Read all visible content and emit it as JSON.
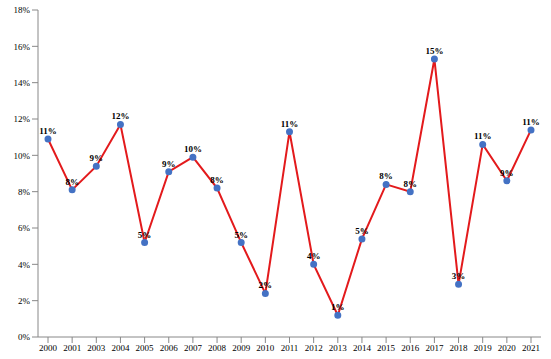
{
  "chart_data": {
    "type": "line",
    "categories": [
      "2000",
      "2001",
      "2003",
      "2004",
      "2005",
      "2006",
      "2007",
      "2008",
      "2009",
      "2010",
      "2011",
      "2012",
      "2013",
      "2014",
      "2015",
      "2016",
      "2017",
      "2018",
      "2019",
      "2020",
      "2021"
    ],
    "values": [
      10.9,
      8.1,
      9.4,
      11.7,
      5.2,
      9.1,
      9.9,
      8.2,
      5.2,
      2.4,
      11.3,
      4.0,
      1.2,
      5.4,
      8.4,
      8.0,
      15.3,
      2.9,
      10.6,
      8.6,
      11.4
    ],
    "value_labels": [
      "11%",
      "8%",
      "9%",
      "12%",
      "5%",
      "9%",
      "10%",
      "8%",
      "5%",
      "2%",
      "11%",
      "4%",
      "1%",
      "5%",
      "8%",
      "8%",
      "15%",
      "3%",
      "11%",
      "9%",
      "11%"
    ],
    "color": "#e31a1c",
    "marker": "circle",
    "data_labels": true,
    "grid": false,
    "ylim": [
      0,
      18
    ],
    "yticks": [
      {
        "value": 0,
        "label": "0%"
      },
      {
        "value": 2,
        "label": "2%"
      },
      {
        "value": 4,
        "label": "4%"
      },
      {
        "value": 6,
        "label": "6%"
      },
      {
        "value": 8,
        "label": "8%"
      },
      {
        "value": 10,
        "label": "10%"
      },
      {
        "value": 12,
        "label": "12%"
      },
      {
        "value": 14,
        "label": "14%"
      },
      {
        "value": 16,
        "label": "16%"
      },
      {
        "value": 18,
        "label": "18%"
      }
    ]
  }
}
